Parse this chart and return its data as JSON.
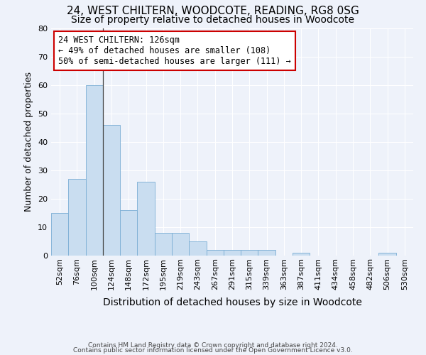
{
  "title1": "24, WEST CHILTERN, WOODCOTE, READING, RG8 0SG",
  "title2": "Size of property relative to detached houses in Woodcote",
  "xlabel": "Distribution of detached houses by size in Woodcote",
  "ylabel": "Number of detached properties",
  "bar_labels": [
    "52sqm",
    "76sqm",
    "100sqm",
    "124sqm",
    "148sqm",
    "172sqm",
    "195sqm",
    "219sqm",
    "243sqm",
    "267sqm",
    "291sqm",
    "315sqm",
    "339sqm",
    "363sqm",
    "387sqm",
    "411sqm",
    "434sqm",
    "458sqm",
    "482sqm",
    "506sqm",
    "530sqm"
  ],
  "bar_values": [
    15,
    27,
    60,
    46,
    16,
    26,
    8,
    8,
    5,
    2,
    2,
    2,
    2,
    0,
    1,
    0,
    0,
    0,
    0,
    1,
    0
  ],
  "bar_color": "#c9ddf0",
  "bar_edge_color": "#7aadd4",
  "ylim": [
    0,
    80
  ],
  "yticks": [
    0,
    10,
    20,
    30,
    40,
    50,
    60,
    70,
    80
  ],
  "annotation_line1": "24 WEST CHILTERN: 126sqm",
  "annotation_line2": "← 49% of detached houses are smaller (108)",
  "annotation_line3": "50% of semi-detached houses are larger (111) →",
  "annotation_box_color": "#cc0000",
  "annotation_box_fill": "#ffffff",
  "footer1": "Contains HM Land Registry data © Crown copyright and database right 2024.",
  "footer2": "Contains public sector information licensed under the Open Government Licence v3.0.",
  "background_color": "#eef2fa",
  "title1_fontsize": 11,
  "title2_fontsize": 10,
  "xlabel_fontsize": 10,
  "ylabel_fontsize": 9,
  "tick_fontsize": 8,
  "annotation_fontsize": 8.5,
  "footer_fontsize": 6.5
}
